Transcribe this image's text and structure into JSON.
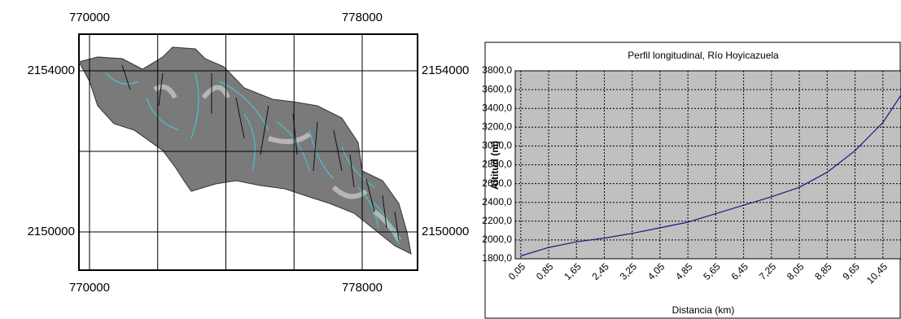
{
  "chart_data": [
    {
      "type": "map",
      "xlim": [
        769690,
        779624
      ],
      "ylim": [
        2149050,
        2154910
      ],
      "xticks": [
        770000,
        {
          "value": 772000,
          "label": null
        },
        {
          "value": 774000,
          "label": null
        },
        {
          "value": 776000,
          "label": null
        },
        778000
      ],
      "yticks": [
        2150000,
        {
          "value": 2152000,
          "label": null
        },
        2154000
      ],
      "grid": true
    },
    {
      "type": "line",
      "title": "Perfil longitudinal, Río Hoyicazuela",
      "xlabel": "Distancia (km)",
      "ylabel": "Altitud (m)",
      "x": [
        0.05,
        0.85,
        1.65,
        2.45,
        3.25,
        4.05,
        4.85,
        5.65,
        6.45,
        7.25,
        8.05,
        8.85,
        9.65,
        10.45,
        10.97
      ],
      "series": [
        {
          "color": "#1a1a80",
          "values": [
            1830,
            1920,
            1980,
            2020,
            2070,
            2130,
            2190,
            2280,
            2370,
            2460,
            2560,
            2720,
            2950,
            3250,
            3540
          ]
        }
      ],
      "xlim": [
        -0.11,
        10.97
      ],
      "ylim": [
        1800,
        3800
      ],
      "xticks": [
        {
          "value": 0.05,
          "label": "0,05"
        },
        {
          "value": 0.85,
          "label": "0,85"
        },
        {
          "value": 1.65,
          "label": "1,65"
        },
        {
          "value": 2.45,
          "label": "2,45"
        },
        {
          "value": 3.25,
          "label": "3,25"
        },
        {
          "value": 4.05,
          "label": "4,05"
        },
        {
          "value": 4.85,
          "label": "4,85"
        },
        {
          "value": 5.65,
          "label": "5,65"
        },
        {
          "value": 6.45,
          "label": "6,45"
        },
        {
          "value": 7.25,
          "label": "7,25"
        },
        {
          "value": 8.05,
          "label": "8,05"
        },
        {
          "value": 8.85,
          "label": "8,85"
        },
        {
          "value": 9.65,
          "label": "9,65"
        },
        {
          "value": 10.45,
          "label": "10,45"
        }
      ],
      "yticks": [
        {
          "value": 1800,
          "label": "1800,0"
        },
        {
          "value": 2000,
          "label": "2000,0"
        },
        {
          "value": 2200,
          "label": "2200,0"
        },
        {
          "value": 2400,
          "label": "2400,0"
        },
        {
          "value": 2600,
          "label": "2600,0"
        },
        {
          "value": 2800,
          "label": "2800,0"
        },
        {
          "value": 3000,
          "label": "3000,0"
        },
        {
          "value": 3200,
          "label": "3200,0"
        },
        {
          "value": 3400,
          "label": "3400,0"
        },
        {
          "value": 3600,
          "label": "3600,0"
        },
        {
          "value": 3800,
          "label": "3800,0"
        }
      ],
      "grid": true,
      "background": "#c0c0c0"
    }
  ]
}
